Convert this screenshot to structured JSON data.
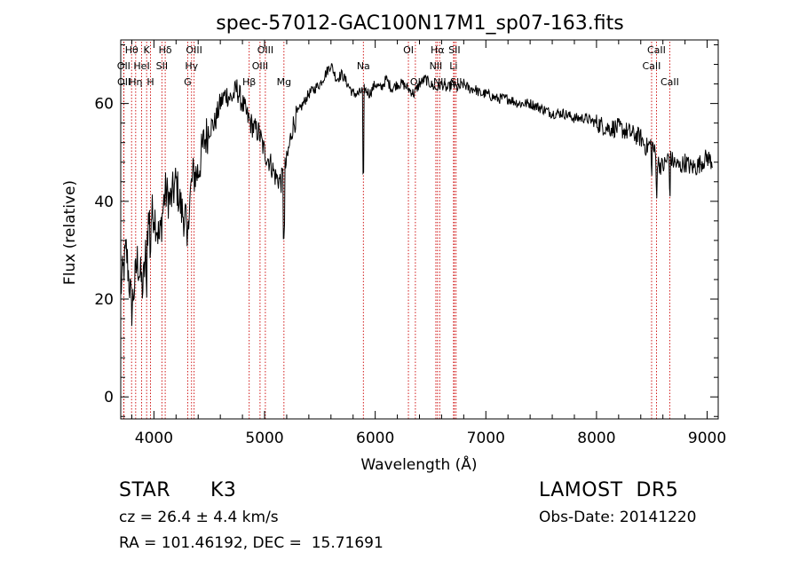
{
  "chart_data": {
    "type": "line",
    "title": "spec-57012-GAC100N17M1_sp07-163.fits",
    "xlabel": "Wavelength (Å)",
    "ylabel": "Flux (relative)",
    "xlim": [
      3700,
      9100
    ],
    "ylim": [
      -4.5,
      73
    ],
    "x_ticks": [
      4000,
      5000,
      6000,
      7000,
      8000,
      9000
    ],
    "y_ticks": [
      0,
      20,
      40,
      60
    ],
    "grid": false,
    "series": [
      {
        "x": [
          3700,
          3750,
          3800,
          3850,
          3900,
          3950,
          4000,
          4050,
          4100,
          4150,
          4200,
          4250,
          4300,
          4350,
          4400,
          4450,
          4500,
          4550,
          4600,
          4650,
          4700,
          4750,
          4800,
          4850,
          4900,
          4950,
          5000,
          5050,
          5100,
          5150,
          5200,
          5250,
          5300,
          5350,
          5400,
          5450,
          5500,
          5550,
          5600,
          5650,
          5700,
          5750,
          5800,
          5850,
          5900,
          5950,
          6000,
          6050,
          6100,
          6150,
          6200,
          6250,
          6300,
          6350,
          6400,
          6450,
          6500,
          6550,
          6600,
          6650,
          6700,
          6750,
          6800,
          6850,
          6900,
          6950,
          7000,
          7100,
          7200,
          7300,
          7400,
          7500,
          7600,
          7700,
          7800,
          7900,
          8000,
          8100,
          8200,
          8300,
          8400,
          8450,
          8500,
          8550,
          8600,
          8650,
          8700,
          8750,
          8800,
          8850,
          8900,
          8950,
          9000,
          9050
        ],
        "y": [
          22,
          30,
          18,
          28,
          22,
          36,
          38,
          32,
          42,
          40,
          44,
          38,
          36,
          45,
          46,
          52,
          55,
          56,
          60,
          62,
          61,
          63,
          60,
          57,
          55,
          54,
          50,
          48,
          45,
          44,
          48,
          55,
          58,
          60,
          62,
          63,
          64,
          66,
          68,
          65,
          66,
          64,
          62,
          62,
          63,
          62,
          64,
          63,
          65,
          63,
          64,
          64,
          63,
          62,
          64,
          65,
          64,
          63,
          64,
          63,
          64,
          63,
          64,
          63,
          63,
          62,
          62,
          61,
          61,
          60,
          60,
          59,
          58,
          58,
          57,
          57,
          56,
          55,
          55,
          54,
          53,
          51,
          52,
          48,
          47,
          49,
          48,
          47,
          48,
          47,
          47,
          48,
          49,
          48
        ]
      }
    ],
    "lines": [
      {
        "label": "Hθ",
        "w": 3798,
        "row": 1
      },
      {
        "label": "OII",
        "w": 3727,
        "row": 2
      },
      {
        "label": "OII",
        "w": 3729,
        "row": 3
      },
      {
        "label": "Hη",
        "w": 3835,
        "row": 3
      },
      {
        "label": "K",
        "w": 3934,
        "row": 1
      },
      {
        "label": "HeI",
        "w": 3889,
        "row": 2
      },
      {
        "label": "H",
        "w": 3969,
        "row": 3
      },
      {
        "label": "Hδ",
        "w": 4102,
        "row": 1
      },
      {
        "label": "SII",
        "w": 4072,
        "row": 2
      },
      {
        "label": "OIII",
        "w": 4363,
        "row": 1
      },
      {
        "label": "Hγ",
        "w": 4340,
        "row": 2
      },
      {
        "label": "G",
        "w": 4305,
        "row": 3
      },
      {
        "label": "OIII",
        "w": 5007,
        "row": 1
      },
      {
        "label": "OIII",
        "w": 4959,
        "row": 2
      },
      {
        "label": "Hβ",
        "w": 4861,
        "row": 3
      },
      {
        "label": "Mg",
        "w": 5175,
        "row": 3
      },
      {
        "label": "Na",
        "w": 5893,
        "row": 2
      },
      {
        "label": "OI",
        "w": 6300,
        "row": 1
      },
      {
        "label": "OI",
        "w": 6363,
        "row": 3
      },
      {
        "label": "Hα",
        "w": 6563,
        "row": 1
      },
      {
        "label": "NII",
        "w": 6548,
        "row": 2
      },
      {
        "label": "NII",
        "w": 6583,
        "row": 3
      },
      {
        "label": "SII",
        "w": 6716,
        "row": 1
      },
      {
        "label": "Li",
        "w": 6708,
        "row": 2
      },
      {
        "label": "SII",
        "w": 6731,
        "row": 3
      },
      {
        "label": "CaII",
        "w": 8542,
        "row": 1
      },
      {
        "label": "CaII",
        "w": 8498,
        "row": 2
      },
      {
        "label": "CaII",
        "w": 8662,
        "row": 3
      }
    ]
  },
  "info": {
    "class_label": "STAR",
    "subclass": "K3",
    "survey": "LAMOST  DR5",
    "cz": "cz = 26.4 ± 4.4 km/s",
    "obs_date": "Obs-Date: 20141220",
    "coords": "RA = 101.46192, DEC =  15.71691"
  }
}
